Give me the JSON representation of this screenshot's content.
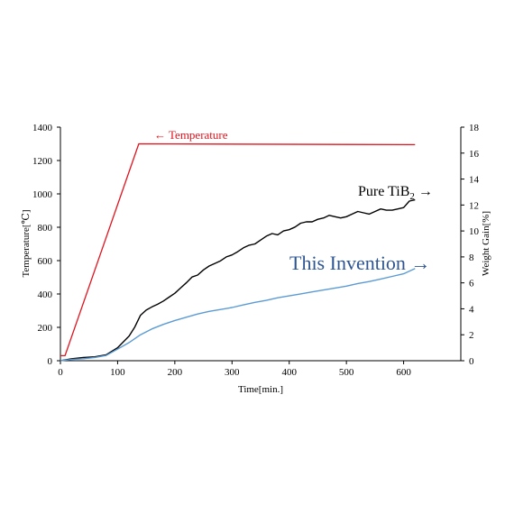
{
  "chart_data": {
    "type": "line",
    "xlabel": "Time[min.]",
    "ylabel_left": "Temperature[℃]",
    "ylabel_right": "Weight Gain[%]",
    "xlim": [
      0,
      700
    ],
    "ylim_left": [
      0,
      1400
    ],
    "ylim_right": [
      0,
      18
    ],
    "x_ticks": [
      0,
      100,
      200,
      300,
      400,
      500,
      600
    ],
    "y_left_ticks": [
      0,
      200,
      400,
      600,
      800,
      1000,
      1200,
      1400
    ],
    "y_right_ticks": [
      0,
      2,
      4,
      6,
      8,
      10,
      12,
      14,
      16,
      18
    ],
    "grid": false,
    "series": [
      {
        "name": "Temperature",
        "axis": "left",
        "color": "#e0141e",
        "x": [
          0,
          8,
          137,
          620
        ],
        "y": [
          30,
          30,
          1300,
          1295
        ]
      },
      {
        "name": "Pure TiB2",
        "axis": "right",
        "color": "#000000",
        "x": [
          0,
          20,
          40,
          60,
          80,
          100,
          120,
          130,
          140,
          150,
          160,
          170,
          180,
          190,
          200,
          210,
          220,
          230,
          240,
          250,
          260,
          270,
          280,
          290,
          300,
          310,
          320,
          330,
          340,
          350,
          360,
          370,
          380,
          390,
          400,
          410,
          420,
          430,
          440,
          450,
          460,
          470,
          480,
          490,
          500,
          510,
          520,
          530,
          540,
          550,
          560,
          570,
          580,
          590,
          600,
          610,
          620
        ],
        "y": [
          0.0,
          0.15,
          0.25,
          0.3,
          0.45,
          1.0,
          1.9,
          2.6,
          3.5,
          3.9,
          4.15,
          4.35,
          4.6,
          4.9,
          5.2,
          5.6,
          6.0,
          6.45,
          6.6,
          7.0,
          7.3,
          7.5,
          7.7,
          8.0,
          8.15,
          8.4,
          8.7,
          8.9,
          9.0,
          9.3,
          9.6,
          9.8,
          9.7,
          10.0,
          10.1,
          10.3,
          10.6,
          10.7,
          10.7,
          10.9,
          11.0,
          11.2,
          11.1,
          11.0,
          11.1,
          11.3,
          11.5,
          11.4,
          11.3,
          11.5,
          11.7,
          11.6,
          11.6,
          11.7,
          11.8,
          12.3,
          12.4
        ]
      },
      {
        "name": "This Invention",
        "axis": "right",
        "color": "#5b9bd5",
        "x": [
          0,
          20,
          40,
          60,
          80,
          100,
          120,
          140,
          160,
          180,
          200,
          220,
          240,
          260,
          280,
          300,
          320,
          340,
          360,
          380,
          400,
          420,
          440,
          460,
          480,
          500,
          520,
          540,
          560,
          580,
          600,
          620
        ],
        "y": [
          0.0,
          0.1,
          0.15,
          0.25,
          0.4,
          0.9,
          1.4,
          2.0,
          2.45,
          2.8,
          3.1,
          3.35,
          3.6,
          3.8,
          3.95,
          4.1,
          4.3,
          4.5,
          4.65,
          4.85,
          5.0,
          5.15,
          5.3,
          5.45,
          5.6,
          5.75,
          5.95,
          6.1,
          6.3,
          6.5,
          6.7,
          7.1
        ]
      }
    ],
    "annotations": [
      {
        "text": "← Temperature",
        "color": "#e0141e"
      },
      {
        "text_main": "Pure TiB",
        "text_sub": "2",
        "text_tail": " →",
        "color": "#000000"
      },
      {
        "text": "This Invention →",
        "color": "#2e5593"
      }
    ]
  }
}
